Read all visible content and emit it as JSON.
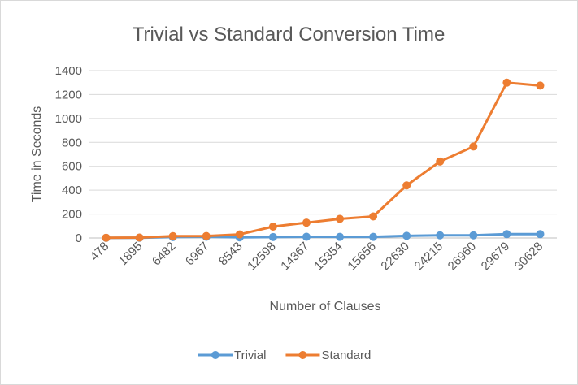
{
  "chart_data": {
    "type": "line",
    "title": "Trivial vs Standard Conversion Time",
    "xlabel": "Number of Clauses",
    "ylabel": "Time in Seconds",
    "categories": [
      "478",
      "1895",
      "6482",
      "6967",
      "8543",
      "12598",
      "14367",
      "15354",
      "15656",
      "22630",
      "24215",
      "26960",
      "29679",
      "30628"
    ],
    "ylim": [
      0,
      1400
    ],
    "yticks": [
      0,
      200,
      400,
      600,
      800,
      1000,
      1200,
      1400
    ],
    "grid": true,
    "legend_position": "bottom",
    "series": [
      {
        "name": "Trivial",
        "color": "#5b9bd5",
        "values": [
          1,
          2,
          8,
          10,
          5,
          8,
          10,
          9,
          9,
          18,
          22,
          22,
          32,
          32
        ]
      },
      {
        "name": "Standard",
        "color": "#ed7d31",
        "values": [
          2,
          3,
          15,
          16,
          30,
          95,
          128,
          160,
          180,
          440,
          640,
          765,
          1300,
          1275
        ]
      }
    ]
  }
}
